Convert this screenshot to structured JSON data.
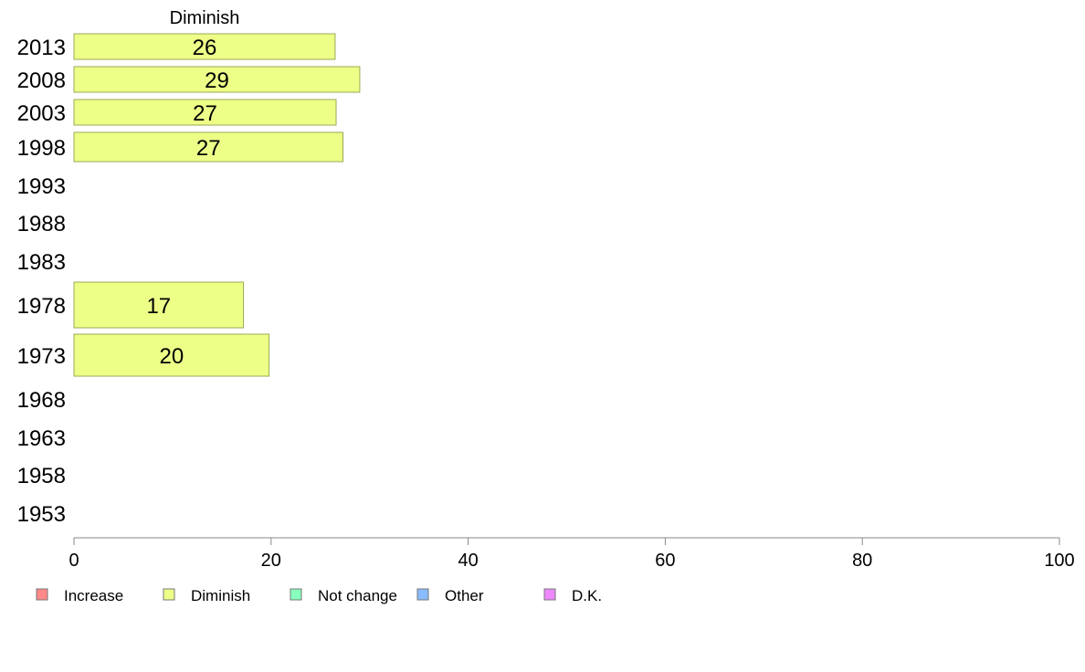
{
  "chart_data": {
    "type": "bar",
    "orientation": "horizontal",
    "title": "Diminish",
    "categories": [
      "2013",
      "2008",
      "2003",
      "1998",
      "1993",
      "1988",
      "1983",
      "1978",
      "1973",
      "1968",
      "1963",
      "1958",
      "1953"
    ],
    "series": [
      {
        "name": "Diminish",
        "values": [
          26.5,
          29,
          26.6,
          27.3,
          null,
          null,
          null,
          17.2,
          19.8,
          null,
          null,
          null,
          null
        ],
        "data_labels": [
          "26",
          "29",
          "27",
          "27",
          "",
          "",
          "",
          "17",
          "20",
          "",
          "",
          "",
          ""
        ]
      }
    ],
    "xlim": [
      0,
      100
    ],
    "x_ticks": [
      0,
      20,
      40,
      60,
      80,
      100
    ],
    "x_tick_labels": [
      "0",
      "20",
      "40",
      "60",
      "80",
      "100"
    ],
    "grid": false,
    "bar_color": "#eeff88",
    "bar_border_color": "#99aa55",
    "legend": {
      "placement": "bottom-left",
      "entries": [
        {
          "label": "Increase",
          "color": "#ff8888"
        },
        {
          "label": "Diminish",
          "color": "#eeff88"
        },
        {
          "label": "Not change",
          "color": "#88ffbb"
        },
        {
          "label": "Other",
          "color": "#88bbff"
        },
        {
          "label": "D.K.",
          "color": "#ee88ff"
        }
      ]
    }
  }
}
